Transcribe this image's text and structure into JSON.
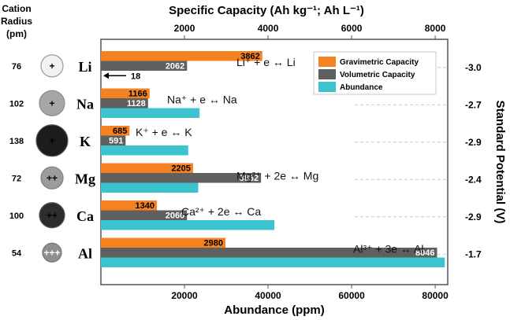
{
  "chart_data": {
    "type": "bar",
    "orientation": "horizontal",
    "top_axis_title": "Specific Capacity (Ah kg⁻¹; Ah L⁻¹)",
    "bottom_axis_title": "Abundance (ppm)",
    "right_axis_title": "Standard  Potential (V)",
    "left_header": [
      "Cation",
      "Radius",
      "(pm)"
    ],
    "top_ticks": [
      "2000",
      "4000",
      "6000",
      "8000"
    ],
    "top_range": [
      0,
      8300
    ],
    "bottom_ticks": [
      "20000",
      "40000",
      "60000",
      "80000"
    ],
    "bottom_range": [
      0,
      83000
    ],
    "colors": {
      "gravimetric": "#F58220",
      "volumetric": "#5F5F5F",
      "abundance": "#3CC4CE"
    },
    "legend": [
      "Gravimetric Capacity",
      "Volumetric Capacity",
      "Abundance"
    ],
    "legend_position": "top-right",
    "elements": [
      {
        "symbol": "Li",
        "radius": "76",
        "charge": "+",
        "potential": "-3.0",
        "gravimetric": 3862,
        "volumetric": 2062,
        "abundance": 18,
        "grav_label": "3862",
        "vol_label": "2062",
        "abund_label": "18",
        "reaction": "Li⁺ + e ↔ Li"
      },
      {
        "symbol": "Na",
        "radius": "102",
        "charge": "+",
        "potential": "-2.7",
        "gravimetric": 1166,
        "volumetric": 1128,
        "abundance": 23600,
        "grav_label": "1166",
        "vol_label": "1128",
        "reaction": "Na⁺ + e ↔ Na"
      },
      {
        "symbol": "K",
        "radius": "138",
        "charge": "+",
        "potential": "-2.9",
        "gravimetric": 685,
        "volumetric": 591,
        "abundance": 20900,
        "grav_label": "685",
        "vol_label": "591",
        "reaction": "K⁺ + e ↔ K"
      },
      {
        "symbol": "Mg",
        "radius": "72",
        "charge": "++",
        "potential": "-2.4",
        "gravimetric": 2205,
        "volumetric": 3832,
        "abundance": 23300,
        "grav_label": "2205",
        "vol_label": "3832",
        "reaction": "Mg²⁺ + 2e ↔ Mg"
      },
      {
        "symbol": "Ca",
        "radius": "100",
        "charge": "++",
        "potential": "-2.9",
        "gravimetric": 1340,
        "volumetric": 2060,
        "abundance": 41500,
        "grav_label": "1340",
        "vol_label": "2060",
        "reaction": "Ca²⁺ + 2e ↔ Ca"
      },
      {
        "symbol": "Al",
        "radius": "54",
        "charge": "+++",
        "potential": "-1.7",
        "gravimetric": 2980,
        "volumetric": 8046,
        "abundance": 82300,
        "grav_label": "2980",
        "vol_label": "8046",
        "reaction": "Al³⁺ + 3e ↔ Al"
      }
    ]
  }
}
